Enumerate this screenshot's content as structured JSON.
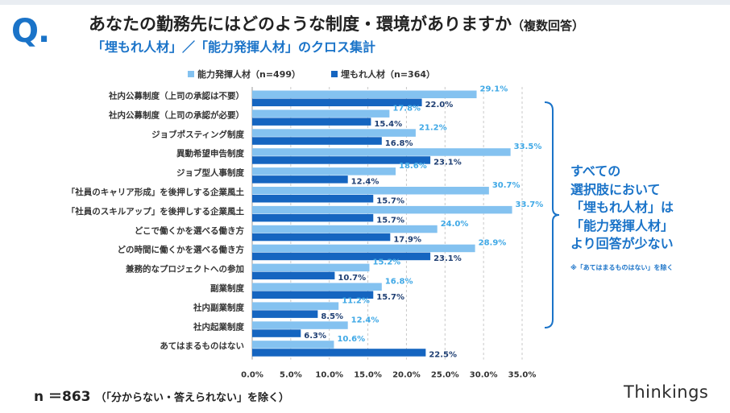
{
  "header": {
    "q_mark": "Q.",
    "title": "あなたの勤務先にはどのような制度・環境がありますか",
    "title_note": "（複数回答）",
    "subtitle": "「埋もれ人材」／「能力発揮人材」のクロス集計"
  },
  "chart_data": {
    "type": "bar",
    "orientation": "horizontal",
    "categories": [
      "社内公募制度（上司の承認は不要）",
      "社内公募制度（上司の承認が必要）",
      "ジョブポスティング制度",
      "異動希望申告制度",
      "ジョブ型人事制度",
      "「社員のキャリア形成」を後押しする企業風土",
      "「社員のスキルアップ」を後押しする企業風土",
      "どこで働くかを選べる働き方",
      "どの時間に働くかを選べる働き方",
      "兼務的なプロジェクトへの参加",
      "副業制度",
      "社内副業制度",
      "社内起業制度",
      "あてはまるものはない"
    ],
    "series": [
      {
        "name": "能力発揮人材（n=499）",
        "color": "#84c2f0",
        "label_color": "#3fa8e6",
        "values": [
          29.1,
          17.8,
          21.2,
          33.5,
          18.6,
          30.7,
          33.7,
          24.0,
          28.9,
          15.2,
          16.8,
          11.2,
          12.4,
          10.6
        ]
      },
      {
        "name": "埋もれ人材（n=364）",
        "color": "#1565c0",
        "label_color": "#1f3f73",
        "values": [
          22.0,
          15.4,
          16.8,
          23.1,
          12.4,
          15.7,
          15.7,
          17.9,
          23.1,
          10.7,
          15.7,
          8.5,
          6.3,
          22.5
        ]
      }
    ],
    "xlim": [
      0,
      35
    ],
    "xticks": [
      "0.0%",
      "5.0%",
      "10.0%",
      "15.0%",
      "20.0%",
      "25.0%",
      "30.0%",
      "35.0%"
    ],
    "grid": "vertical dashed",
    "legend": "top",
    "value_suffix": "%"
  },
  "callout": {
    "lines": [
      "すべての",
      "選択肢において",
      "「埋もれ人材」は",
      "「能力発揮人材」",
      "より回答が少ない"
    ],
    "note": "※「あてはまるものはない」を除く"
  },
  "footer": {
    "n_label": "n ＝863",
    "n_note": "（「分からない・答えられない」を除く）",
    "brand": "Thinkings"
  },
  "colors": {
    "accent": "#1a73c8",
    "bracket": "#1a73c8"
  }
}
